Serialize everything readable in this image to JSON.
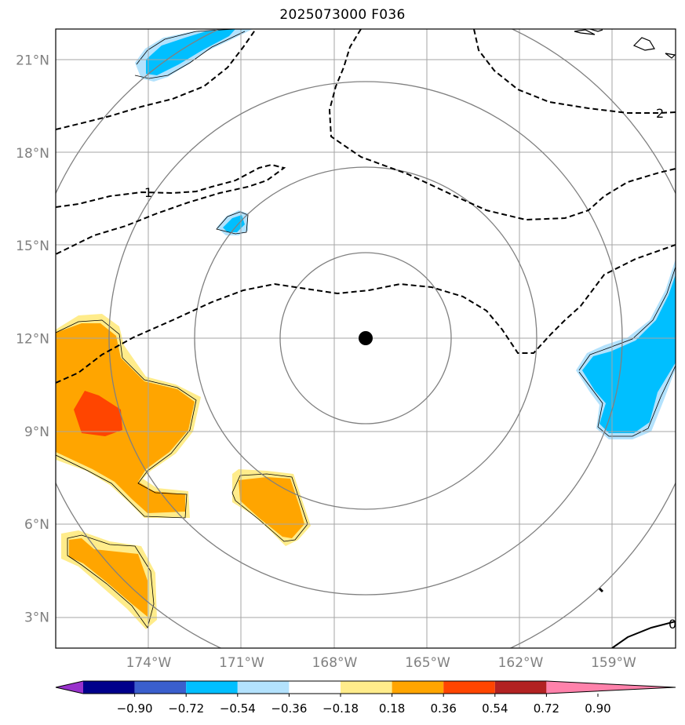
{
  "title": "2025073000 F036",
  "map": {
    "lat_ticks": [
      {
        "value": 21,
        "label": "21°N"
      },
      {
        "value": 18,
        "label": "18°N"
      },
      {
        "value": 15,
        "label": "15°N"
      },
      {
        "value": 12,
        "label": "12°N"
      },
      {
        "value": 9,
        "label": "9°N"
      },
      {
        "value": 6,
        "label": "6°N"
      },
      {
        "value": 3,
        "label": "3°N"
      }
    ],
    "lon_ticks": [
      {
        "value": -174,
        "label": "174°W"
      },
      {
        "value": -171,
        "label": "171°W"
      },
      {
        "value": -168,
        "label": "168°W"
      },
      {
        "value": -165,
        "label": "165°W"
      },
      {
        "value": -162,
        "label": "162°W"
      },
      {
        "value": -159,
        "label": "159°W"
      }
    ],
    "extent": {
      "lon_min": -177,
      "lon_max": -157,
      "lat_min": 2,
      "lat_max": 22
    },
    "center": {
      "lon": -167,
      "lat": 12
    },
    "range_rings_deg": [
      2.75,
      5.5,
      8.25,
      11
    ],
    "contour_labels": [
      "1",
      "2",
      "0"
    ]
  },
  "colorbar": {
    "colors": [
      "#9932cc",
      "#00008b",
      "#3a5fcd",
      "#00bfff",
      "#b3e2fd",
      "#ffffff",
      "#ffec8b",
      "#ffa500",
      "#ff4500",
      "#b22222",
      "#ff82ab"
    ],
    "ticks": [
      "−0.90",
      "−0.72",
      "−0.54",
      "−0.36",
      "−0.18",
      "0.18",
      "0.36",
      "0.54",
      "0.72",
      "0.90"
    ]
  }
}
